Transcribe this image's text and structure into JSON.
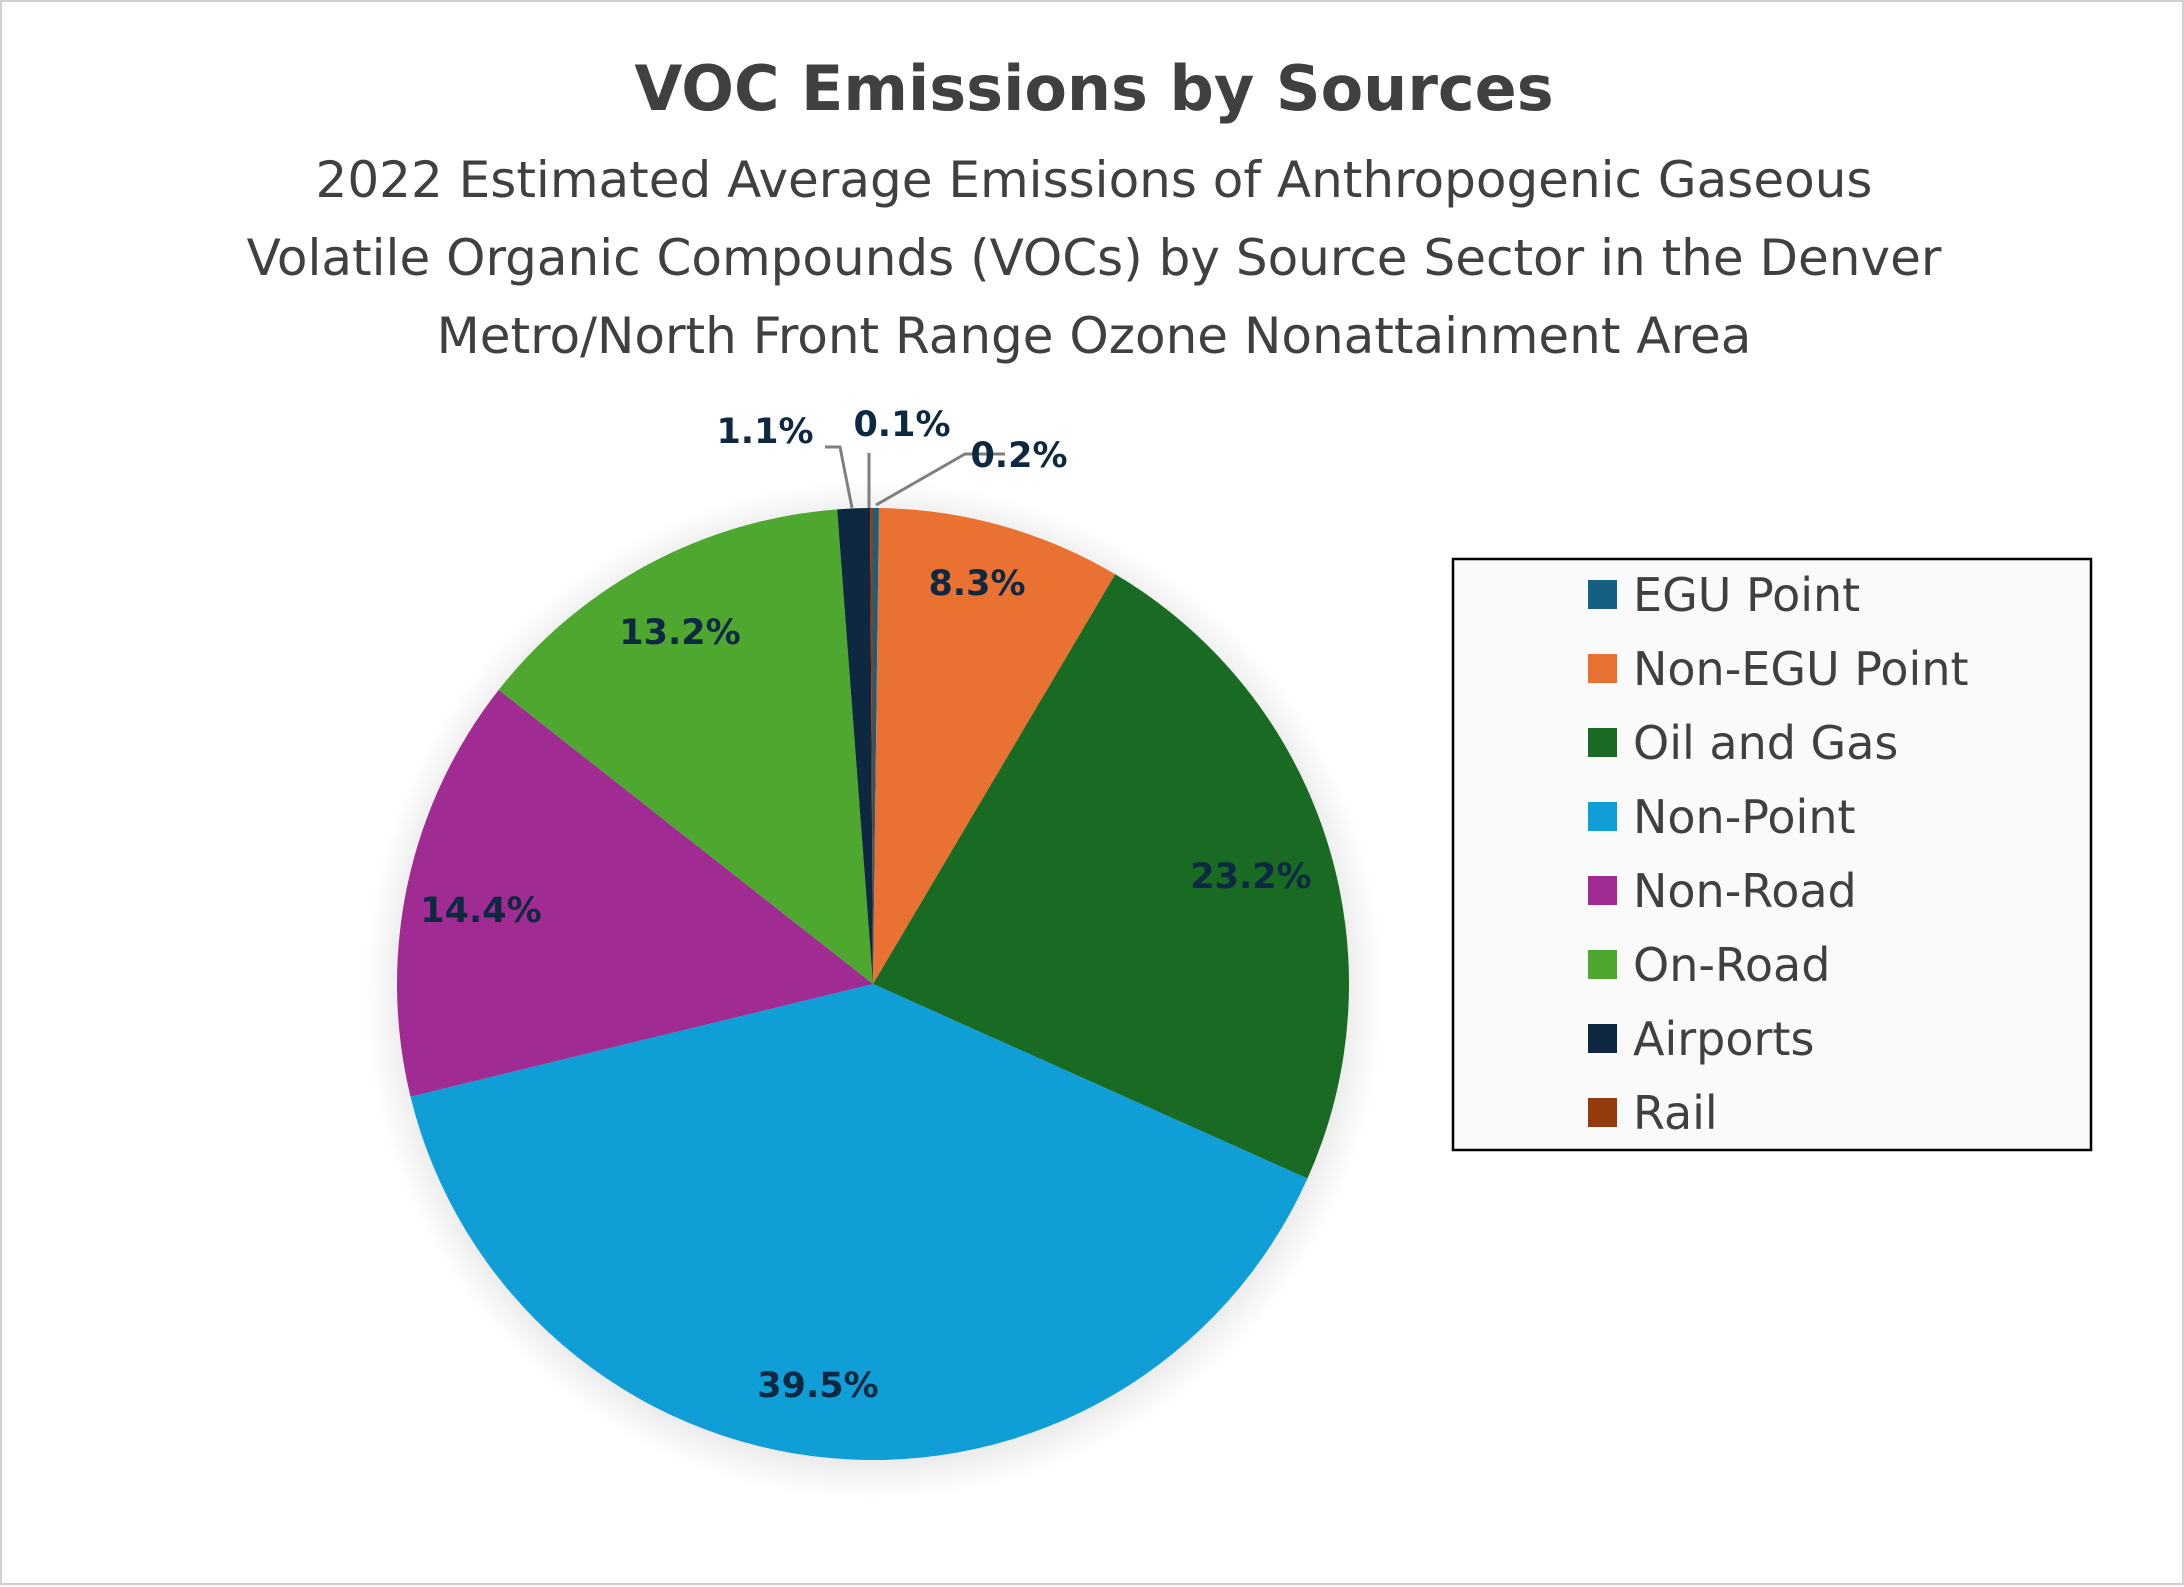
{
  "chart_data": {
    "type": "pie",
    "title": "VOC Emissions by Sources",
    "subtitle": [
      "2022 Estimated Average Emissions of Anthropogenic Gaseous",
      "Volatile Organic Compounds (VOCs) by Source Sector in the Denver",
      "Metro/North Front Range Ozone Nonattainment Area"
    ],
    "legend_position": "right",
    "slices": [
      {
        "name": "EGU Point",
        "value": 0.2,
        "label": "0.2%",
        "color": "#156082"
      },
      {
        "name": "Non-EGU Point",
        "value": 8.3,
        "label": "8.3%",
        "color": "#e97132"
      },
      {
        "name": "Oil and Gas",
        "value": 23.2,
        "label": "23.2%",
        "color": "#196b24"
      },
      {
        "name": "Non-Point",
        "value": 39.5,
        "label": "39.5%",
        "color": "#0f9ed5"
      },
      {
        "name": "Non-Road",
        "value": 14.4,
        "label": "14.4%",
        "color": "#a02b93"
      },
      {
        "name": "On-Road",
        "value": 13.2,
        "label": "13.2%",
        "color": "#4ea72e"
      },
      {
        "name": "Airports",
        "value": 1.1,
        "label": "1.1%",
        "color": "#0e2841"
      },
      {
        "name": "Rail",
        "value": 0.1,
        "label": "0.1%",
        "color": "#953c0e"
      }
    ]
  }
}
